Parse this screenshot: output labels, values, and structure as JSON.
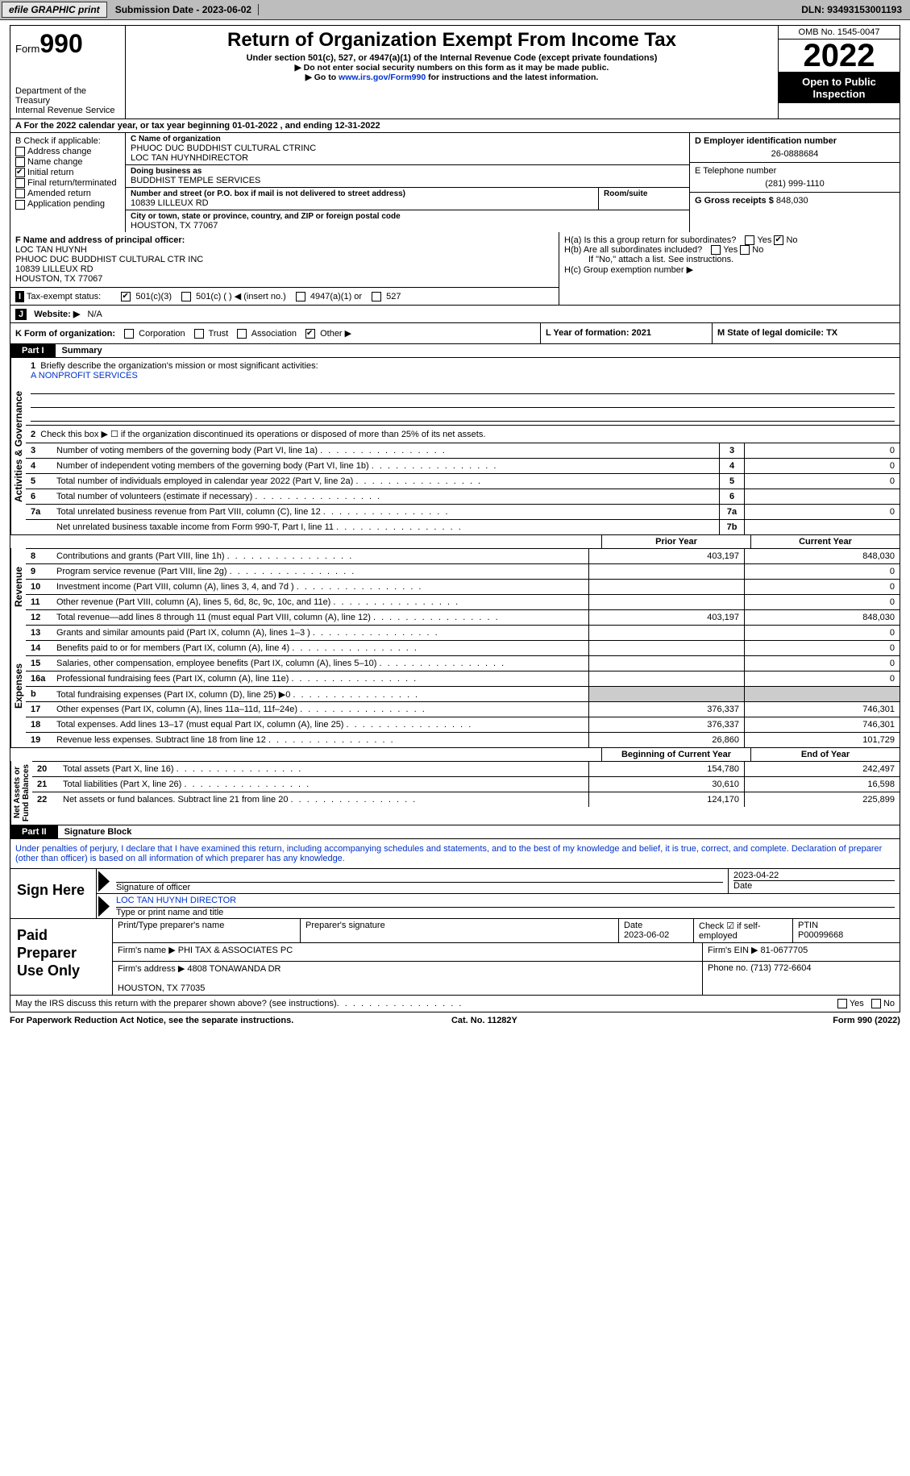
{
  "topbar": {
    "efile": "efile GRAPHIC print",
    "submission": "Submission Date - 2023-06-02",
    "dln": "DLN: 93493153001193"
  },
  "header": {
    "form_word": "Form",
    "form_num": "990",
    "title": "Return of Organization Exempt From Income Tax",
    "subtitle": "Under section 501(c), 527, or 4947(a)(1) of the Internal Revenue Code (except private foundations)",
    "note1": "▶ Do not enter social security numbers on this form as it may be made public.",
    "note2_pre": "▶ Go to ",
    "note2_link": "www.irs.gov/Form990",
    "note2_post": " for instructions and the latest information.",
    "dept": "Department of the Treasury\nInternal Revenue Service",
    "omb": "OMB No. 1545-0047",
    "year": "2022",
    "open": "Open to Public Inspection"
  },
  "lineA": "A For the 2022 calendar year, or tax year beginning 01-01-2022     , and ending 12-31-2022",
  "boxB": {
    "title": "B Check if applicable:",
    "items": [
      {
        "label": "Address change",
        "checked": false
      },
      {
        "label": "Name change",
        "checked": false
      },
      {
        "label": "Initial return",
        "checked": true
      },
      {
        "label": "Final return/terminated",
        "checked": false
      },
      {
        "label": "Amended return",
        "checked": false
      },
      {
        "label": "Application pending",
        "checked": false
      }
    ]
  },
  "boxC": {
    "name_lbl": "C Name of organization",
    "name": "PHUOC DUC BUDDHIST CULTURAL CTRINC\nLOC TAN HUYNHDIRECTOR",
    "dba_lbl": "Doing business as",
    "dba": "BUDDHIST TEMPLE SERVICES",
    "street_lbl": "Number and street (or P.O. box if mail is not delivered to street address)",
    "street": "10839 LILLEUX RD",
    "room_lbl": "Room/suite",
    "city_lbl": "City or town, state or province, country, and ZIP or foreign postal code",
    "city": "HOUSTON, TX  77067"
  },
  "boxD": {
    "ein_lbl": "D Employer identification number",
    "ein": "26-0888684",
    "phone_lbl": "E Telephone number",
    "phone": "(281) 999-1110",
    "gross_lbl": "G Gross receipts $",
    "gross": "848,030"
  },
  "boxF": {
    "lbl": "F Name and address of principal officer:",
    "name": "LOC TAN HUYNH",
    "org": "PHUOC DUC BUDDHIST CULTURAL CTR INC",
    "street": "10839 LILLEUX RD",
    "city": "HOUSTON, TX  77067"
  },
  "boxH": {
    "a": "H(a)  Is this a group return for subordinates?",
    "b": "H(b)  Are all subordinates included?",
    "note": "If \"No,\" attach a list. See instructions.",
    "c": "H(c)  Group exemption number ▶",
    "yes": "Yes",
    "no": "No"
  },
  "boxI": {
    "lbl": "I",
    "text": "Tax-exempt status:",
    "opts": [
      "501(c)(3)",
      "501(c) (  ) ◀ (insert no.)",
      "4947(a)(1) or",
      "527"
    ]
  },
  "boxJ": {
    "lbl": "J",
    "text": "Website: ▶",
    "val": "N/A"
  },
  "rowK": {
    "k": "K Form of organization:",
    "opts": [
      "Corporation",
      "Trust",
      "Association",
      "Other ▶"
    ],
    "l": "L Year of formation: 2021",
    "m": "M State of legal domicile: TX"
  },
  "part1": {
    "tab": "Part I",
    "title": "Summary"
  },
  "part2": {
    "tab": "Part II",
    "title": "Signature Block"
  },
  "gov": {
    "q1": "Briefly describe the organization's mission or most significant activities:",
    "mission": "A NONPROFIT SERVICES",
    "q2": "Check this box ▶ ☐ if the organization discontinued its operations or disposed of more than 25% of its net assets.",
    "lines": [
      {
        "n": "3",
        "d": "Number of voting members of the governing body (Part VI, line 1a)",
        "box": "3",
        "v": "0"
      },
      {
        "n": "4",
        "d": "Number of independent voting members of the governing body (Part VI, line 1b)",
        "box": "4",
        "v": "0"
      },
      {
        "n": "5",
        "d": "Total number of individuals employed in calendar year 2022 (Part V, line 2a)",
        "box": "5",
        "v": "0"
      },
      {
        "n": "6",
        "d": "Total number of volunteers (estimate if necessary)",
        "box": "6",
        "v": ""
      },
      {
        "n": "7a",
        "d": "Total unrelated business revenue from Part VIII, column (C), line 12",
        "box": "7a",
        "v": "0"
      },
      {
        "n": "",
        "d": "Net unrelated business taxable income from Form 990-T, Part I, line 11",
        "box": "7b",
        "v": ""
      }
    ]
  },
  "rev_hdr": {
    "prior": "Prior Year",
    "curr": "Current Year"
  },
  "revenue": [
    {
      "n": "8",
      "d": "Contributions and grants (Part VIII, line 1h)",
      "p": "403,197",
      "c": "848,030"
    },
    {
      "n": "9",
      "d": "Program service revenue (Part VIII, line 2g)",
      "p": "",
      "c": "0"
    },
    {
      "n": "10",
      "d": "Investment income (Part VIII, column (A), lines 3, 4, and 7d )",
      "p": "",
      "c": "0"
    },
    {
      "n": "11",
      "d": "Other revenue (Part VIII, column (A), lines 5, 6d, 8c, 9c, 10c, and 11e)",
      "p": "",
      "c": "0"
    },
    {
      "n": "12",
      "d": "Total revenue—add lines 8 through 11 (must equal Part VIII, column (A), line 12)",
      "p": "403,197",
      "c": "848,030"
    }
  ],
  "expenses": [
    {
      "n": "13",
      "d": "Grants and similar amounts paid (Part IX, column (A), lines 1–3 )",
      "p": "",
      "c": "0"
    },
    {
      "n": "14",
      "d": "Benefits paid to or for members (Part IX, column (A), line 4)",
      "p": "",
      "c": "0"
    },
    {
      "n": "15",
      "d": "Salaries, other compensation, employee benefits (Part IX, column (A), lines 5–10)",
      "p": "",
      "c": "0"
    },
    {
      "n": "16a",
      "d": "Professional fundraising fees (Part IX, column (A), line 11e)",
      "p": "",
      "c": "0"
    },
    {
      "n": "b",
      "d": "Total fundraising expenses (Part IX, column (D), line 25) ▶0",
      "p": "shade",
      "c": "shade"
    },
    {
      "n": "17",
      "d": "Other expenses (Part IX, column (A), lines 11a–11d, 11f–24e)",
      "p": "376,337",
      "c": "746,301"
    },
    {
      "n": "18",
      "d": "Total expenses. Add lines 13–17 (must equal Part IX, column (A), line 25)",
      "p": "376,337",
      "c": "746,301"
    },
    {
      "n": "19",
      "d": "Revenue less expenses. Subtract line 18 from line 12",
      "p": "26,860",
      "c": "101,729"
    }
  ],
  "net_hdr": {
    "prior": "Beginning of Current Year",
    "curr": "End of Year"
  },
  "net": [
    {
      "n": "20",
      "d": "Total assets (Part X, line 16)",
      "p": "154,780",
      "c": "242,497"
    },
    {
      "n": "21",
      "d": "Total liabilities (Part X, line 26)",
      "p": "30,610",
      "c": "16,598"
    },
    {
      "n": "22",
      "d": "Net assets or fund balances. Subtract line 21 from line 20",
      "p": "124,170",
      "c": "225,899"
    }
  ],
  "sig_decl": "Under penalties of perjury, I declare that I have examined this return, including accompanying schedules and statements, and to the best of my knowledge and belief, it is true, correct, and complete. Declaration of preparer (other than officer) is based on all information of which preparer has any knowledge.",
  "sign": {
    "lbl": "Sign Here",
    "sig_lbl": "Signature of officer",
    "date": "2023-04-22",
    "date_lbl": "Date",
    "name": "LOC TAN HUYNH  DIRECTOR",
    "name_lbl": "Type or print name and title"
  },
  "paid": {
    "lbl": "Paid Preparer Use Only",
    "r1": {
      "c1": "Print/Type preparer's name",
      "c2": "Preparer's signature",
      "c3": "Date\n2023-06-02",
      "c4": "Check ☑ if self-employed",
      "c5": "PTIN\nP00099668"
    },
    "r2": {
      "c1": "Firm's name    ▶ PHI TAX & ASSOCIATES PC",
      "c2": "Firm's EIN ▶ 81-0677705"
    },
    "r3": {
      "c1": "Firm's address ▶ 4808 TONAWANDA DR\n\n                          HOUSTON, TX  77035",
      "c2": "Phone no. (713) 772-6604"
    }
  },
  "footerq": "May the IRS discuss this return with the preparer shown above? (see instructions)",
  "footer": {
    "l": "For Paperwork Reduction Act Notice, see the separate instructions.",
    "m": "Cat. No. 11282Y",
    "r": "Form 990 (2022)"
  }
}
